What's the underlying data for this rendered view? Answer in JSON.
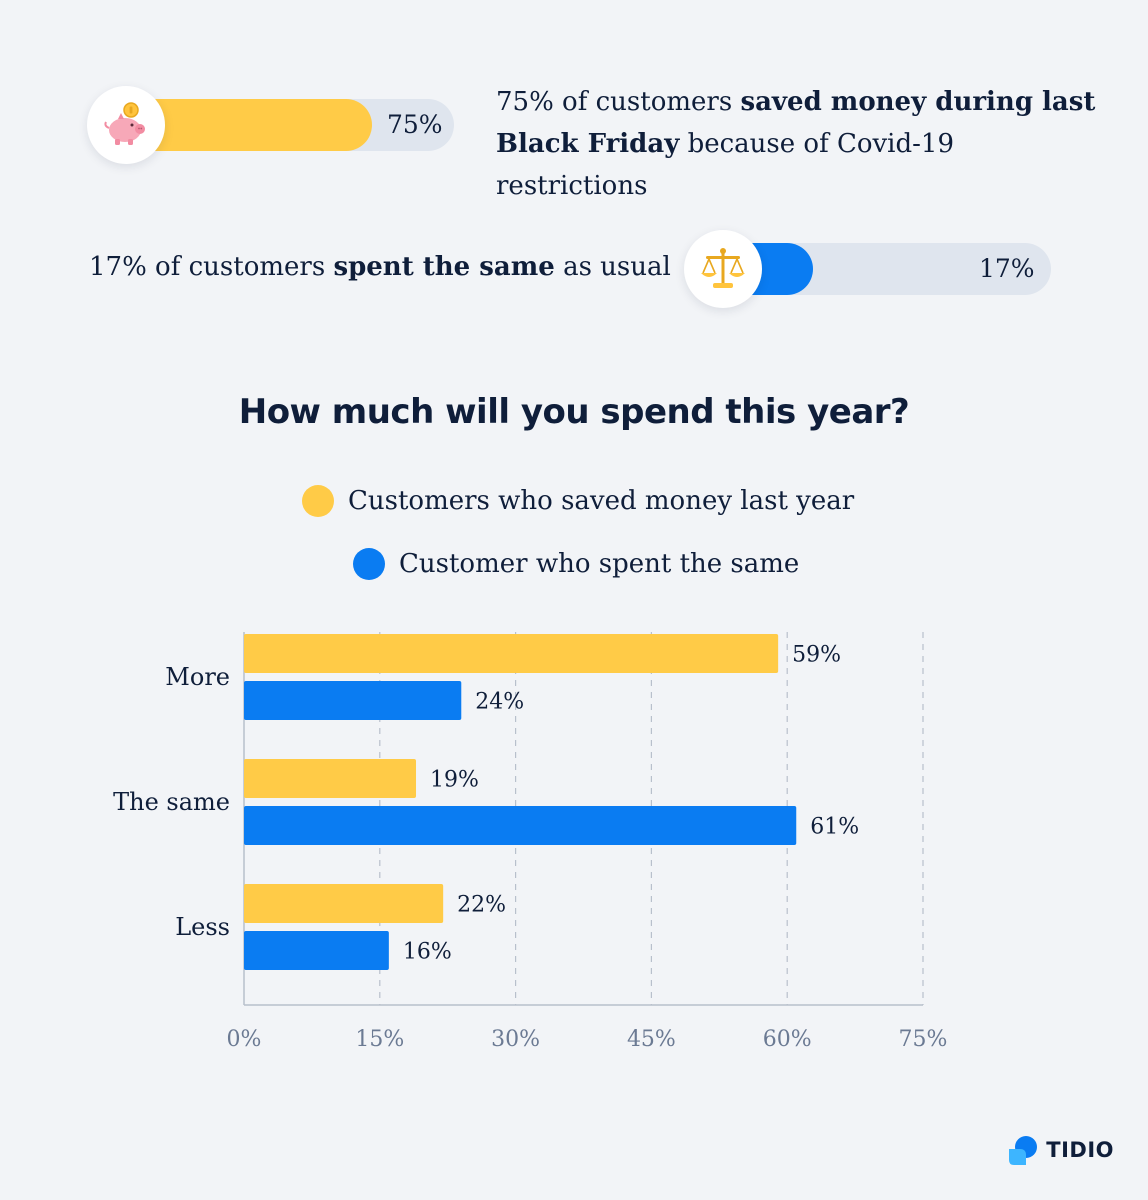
{
  "stats": [
    {
      "percent": 75,
      "percent_label": "75%",
      "icon": "piggy-bank-icon",
      "color": "#ffcb47",
      "text_parts": [
        {
          "text": "75% of customers ",
          "bold": false
        },
        {
          "text": "saved money during last Black Friday",
          "bold": true
        },
        {
          "text": " because of Covid-19 restrictions",
          "bold": false
        }
      ]
    },
    {
      "percent": 17,
      "percent_label": "17%",
      "icon": "scales-icon",
      "color": "#0a7cf2",
      "text_parts": [
        {
          "text": "17% of customers ",
          "bold": false
        },
        {
          "text": "spent the same",
          "bold": true
        },
        {
          "text": " as usual",
          "bold": false
        }
      ]
    }
  ],
  "chart_data": {
    "type": "bar",
    "orientation": "horizontal",
    "title": "How much will you spend this year?",
    "categories": [
      "More",
      "The same",
      "Less"
    ],
    "series": [
      {
        "name": "Customers who saved money last year",
        "color": "#ffcb47",
        "values": [
          59,
          19,
          22
        ]
      },
      {
        "name": "Customer who spent the same",
        "color": "#0a7cf2",
        "values": [
          24,
          61,
          16
        ]
      }
    ],
    "value_suffix": "%",
    "xlim": [
      0,
      75
    ],
    "xticks": [
      0,
      15,
      30,
      45,
      60,
      75
    ],
    "xtick_labels": [
      "0%",
      "15%",
      "30%",
      "45%",
      "60%",
      "75%"
    ],
    "grid": "vertical-dashed",
    "legend_position": "top-center"
  },
  "brand": {
    "name": "TIDIO",
    "icon": "tidio-logo-icon",
    "color": "#0a7cf2"
  }
}
